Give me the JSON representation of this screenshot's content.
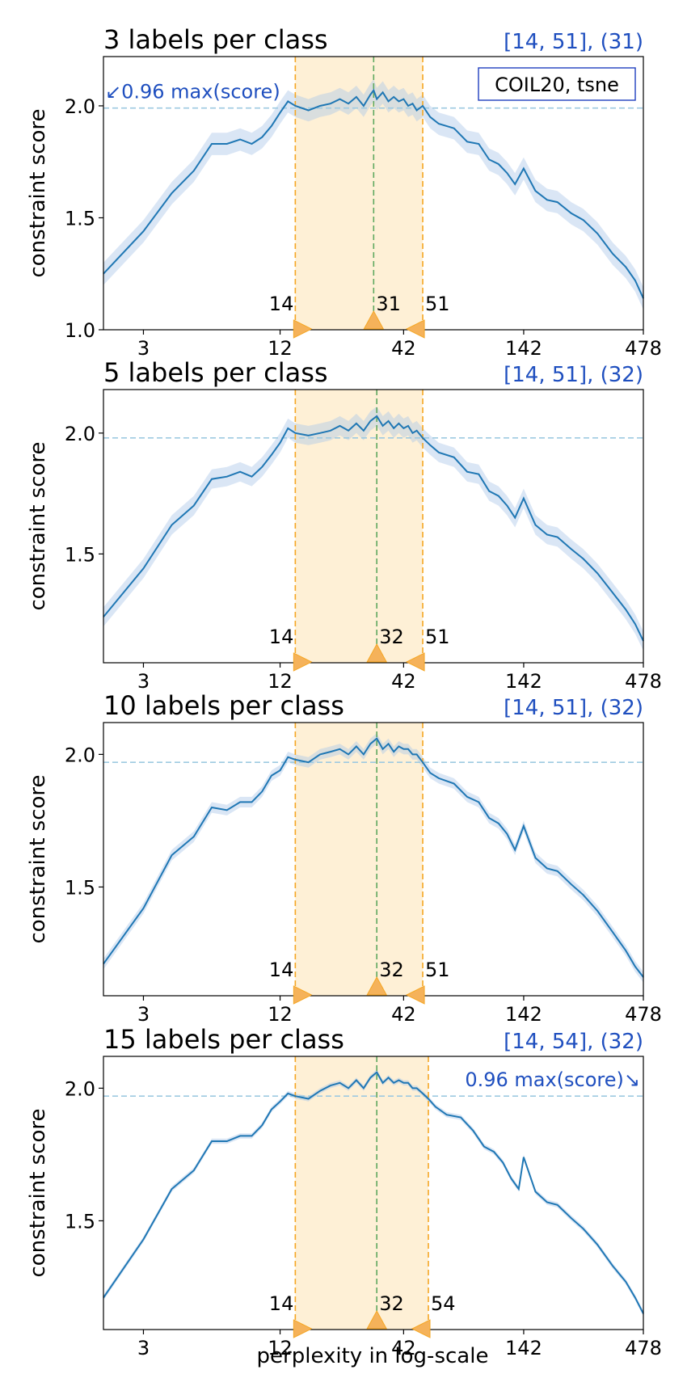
{
  "figure": {
    "xlabel": "perplexity in log-scale",
    "colors": {
      "line": "#1f77b4",
      "band": "#aec7e8",
      "threshold": "#9ecae1",
      "bounds": "#f5a623",
      "center": "#5fa85f",
      "shade": "#fdebc8",
      "marker": "#f5b25a",
      "annotation": "#1f4fbf"
    }
  },
  "chart_data": [
    {
      "type": "line",
      "title": "3 labels per class",
      "range_note": "[14, 51], (31)",
      "ylabel": "constraint score",
      "xscale": "log",
      "xlim": [
        2,
        478
      ],
      "ylim": [
        1.0,
        2.22
      ],
      "xticks": [
        3,
        12,
        42,
        142,
        478
      ],
      "yticks": [
        1.0,
        1.5,
        2.0
      ],
      "ytick_labels": [
        "1.0",
        "1.5",
        "2.0"
      ],
      "threshold": 1.99,
      "threshold_annotation": "↙0.96 max(score)",
      "annotation_side": "left",
      "legend_box": "COIL20, tsne",
      "band_width": 0.05,
      "range": {
        "low": 14,
        "high": 51,
        "center": 31
      },
      "range_labels": {
        "low": "14",
        "high": "51",
        "center": "31"
      },
      "series": [
        {
          "x": [
            2,
            3,
            4,
            5,
            6,
            7,
            8,
            9,
            10,
            11,
            12,
            13,
            14,
            16,
            18,
            20,
            22,
            24,
            26,
            28,
            30,
            31,
            32,
            34,
            36,
            38,
            40,
            42,
            44,
            46,
            48,
            51,
            55,
            60,
            70,
            80,
            90,
            100,
            110,
            120,
            130,
            142,
            160,
            180,
            200,
            230,
            260,
            300,
            350,
            400,
            440,
            478
          ],
          "y": [
            1.25,
            1.44,
            1.61,
            1.71,
            1.83,
            1.83,
            1.85,
            1.83,
            1.86,
            1.91,
            1.97,
            2.02,
            2.0,
            1.98,
            2.0,
            2.01,
            2.03,
            2.01,
            2.04,
            2.0,
            2.05,
            2.07,
            2.03,
            2.06,
            2.02,
            2.04,
            2.02,
            2.03,
            2.0,
            2.01,
            1.98,
            2.0,
            1.95,
            1.92,
            1.9,
            1.84,
            1.83,
            1.76,
            1.74,
            1.7,
            1.65,
            1.72,
            1.62,
            1.58,
            1.57,
            1.52,
            1.49,
            1.43,
            1.34,
            1.28,
            1.22,
            1.14
          ]
        }
      ]
    },
    {
      "type": "line",
      "title": "5 labels per class",
      "range_note": "[14, 51], (32)",
      "ylabel": "constraint score",
      "xscale": "log",
      "xlim": [
        2,
        478
      ],
      "ylim": [
        1.05,
        2.18
      ],
      "xticks": [
        3,
        12,
        42,
        142,
        478
      ],
      "yticks": [
        1.5,
        2.0
      ],
      "ytick_labels": [
        "1.5",
        "2.0"
      ],
      "threshold": 1.98,
      "band_width": 0.04,
      "range": {
        "low": 14,
        "high": 51,
        "center": 32
      },
      "range_labels": {
        "low": "14",
        "high": "51",
        "center": "32"
      },
      "series": [
        {
          "x": [
            2,
            3,
            4,
            5,
            6,
            7,
            8,
            9,
            10,
            11,
            12,
            13,
            14,
            16,
            18,
            20,
            22,
            24,
            26,
            28,
            30,
            32,
            34,
            36,
            38,
            40,
            42,
            44,
            46,
            48,
            51,
            55,
            60,
            70,
            80,
            90,
            100,
            110,
            120,
            130,
            142,
            160,
            180,
            200,
            230,
            260,
            300,
            350,
            400,
            440,
            478
          ],
          "y": [
            1.24,
            1.44,
            1.62,
            1.7,
            1.81,
            1.82,
            1.84,
            1.82,
            1.86,
            1.91,
            1.96,
            2.02,
            2.0,
            1.99,
            2.0,
            2.01,
            2.03,
            2.01,
            2.04,
            2.01,
            2.05,
            2.07,
            2.03,
            2.05,
            2.02,
            2.04,
            2.02,
            2.03,
            2.0,
            2.01,
            1.98,
            1.95,
            1.92,
            1.9,
            1.84,
            1.83,
            1.76,
            1.74,
            1.7,
            1.65,
            1.73,
            1.62,
            1.58,
            1.57,
            1.52,
            1.48,
            1.42,
            1.34,
            1.27,
            1.21,
            1.14
          ]
        }
      ]
    },
    {
      "type": "line",
      "title": "10 labels per class",
      "range_note": "[14, 51], (32)",
      "ylabel": "constraint score",
      "xscale": "log",
      "xlim": [
        2,
        478
      ],
      "ylim": [
        1.09,
        2.12
      ],
      "xticks": [
        3,
        12,
        42,
        142,
        478
      ],
      "yticks": [
        1.5,
        2.0
      ],
      "ytick_labels": [
        "1.5",
        "2.0"
      ],
      "threshold": 1.97,
      "band_width": 0.02,
      "range": {
        "low": 14,
        "high": 51,
        "center": 32
      },
      "range_labels": {
        "low": "14",
        "high": "51",
        "center": "32"
      },
      "series": [
        {
          "x": [
            2,
            3,
            4,
            5,
            6,
            7,
            8,
            9,
            10,
            11,
            12,
            13,
            14,
            16,
            18,
            20,
            22,
            24,
            26,
            28,
            30,
            32,
            34,
            36,
            38,
            40,
            42,
            44,
            46,
            48,
            51,
            55,
            60,
            70,
            80,
            90,
            100,
            110,
            120,
            130,
            142,
            160,
            180,
            200,
            230,
            260,
            300,
            350,
            400,
            440,
            478
          ],
          "y": [
            1.21,
            1.42,
            1.62,
            1.69,
            1.8,
            1.79,
            1.82,
            1.82,
            1.86,
            1.92,
            1.94,
            1.99,
            1.98,
            1.97,
            2.0,
            2.01,
            2.02,
            2.0,
            2.03,
            2.0,
            2.04,
            2.06,
            2.02,
            2.04,
            2.01,
            2.03,
            2.02,
            2.02,
            2.0,
            2.0,
            1.97,
            1.93,
            1.91,
            1.89,
            1.84,
            1.82,
            1.76,
            1.74,
            1.7,
            1.64,
            1.73,
            1.61,
            1.57,
            1.56,
            1.51,
            1.47,
            1.41,
            1.33,
            1.26,
            1.2,
            1.16
          ]
        }
      ]
    },
    {
      "type": "line",
      "title": "15 labels per class",
      "range_note": "[14, 54], (32)",
      "ylabel": "constraint score",
      "xlabel": "perplexity in log-scale",
      "xscale": "log",
      "xlim": [
        2,
        478
      ],
      "ylim": [
        1.09,
        2.12
      ],
      "xticks": [
        3,
        12,
        42,
        142,
        478
      ],
      "yticks": [
        1.5,
        2.0
      ],
      "ytick_labels": [
        "1.5",
        "2.0"
      ],
      "threshold": 1.97,
      "threshold_annotation": "0.96 max(score)↘",
      "annotation_side": "right",
      "band_width": 0.01,
      "range": {
        "low": 14,
        "high": 54,
        "center": 32
      },
      "range_labels": {
        "low": "14",
        "high": "54",
        "center": "32"
      },
      "series": [
        {
          "x": [
            2,
            3,
            4,
            5,
            6,
            7,
            8,
            9,
            10,
            11,
            12,
            13,
            14,
            16,
            18,
            20,
            22,
            24,
            26,
            28,
            30,
            32,
            34,
            36,
            38,
            40,
            42,
            44,
            46,
            48,
            51,
            54,
            58,
            65,
            75,
            85,
            95,
            105,
            115,
            125,
            135,
            142,
            160,
            180,
            200,
            230,
            260,
            300,
            350,
            400,
            440,
            478
          ],
          "y": [
            1.21,
            1.43,
            1.62,
            1.69,
            1.8,
            1.8,
            1.82,
            1.82,
            1.86,
            1.92,
            1.95,
            1.98,
            1.97,
            1.96,
            1.99,
            2.01,
            2.02,
            2.0,
            2.03,
            2.0,
            2.04,
            2.06,
            2.02,
            2.04,
            2.02,
            2.03,
            2.02,
            2.02,
            2.0,
            2.0,
            1.98,
            1.96,
            1.93,
            1.9,
            1.89,
            1.84,
            1.78,
            1.76,
            1.72,
            1.66,
            1.62,
            1.74,
            1.61,
            1.57,
            1.56,
            1.51,
            1.47,
            1.41,
            1.33,
            1.27,
            1.21,
            1.15
          ]
        }
      ]
    }
  ]
}
